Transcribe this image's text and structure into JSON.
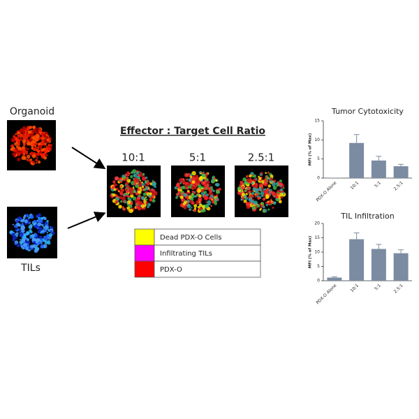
{
  "figure": {
    "organoid_label": "Organoid",
    "tils_label": "TILs",
    "ratio_title": "Effector : Target Cell Ratio",
    "ratios": [
      "10:1",
      "5:1",
      "2.5:1"
    ],
    "legend": [
      {
        "label": "Dead PDX-O Cells",
        "color": "#ffff00"
      },
      {
        "label": "Infiltrating TILs",
        "color": "#ff00ff"
      },
      {
        "label": "PDX-O",
        "color": "#ff0000"
      }
    ]
  },
  "chart_data": [
    {
      "type": "bar",
      "title": "Tumor Cytotoxicity",
      "y_label": "MFI (% of Max)",
      "color": "#7b8ba1",
      "categories": [
        "PDX-O Alone",
        "10:1",
        "5:1",
        "2.5:1"
      ],
      "values": [
        0.1,
        9.2,
        4.6,
        3.1
      ],
      "errors": [
        0,
        2.2,
        1.1,
        0.5
      ],
      "ylim": [
        0,
        15
      ],
      "yticks": [
        0,
        5,
        10,
        15
      ]
    },
    {
      "type": "bar",
      "title": "TIL Infiltration",
      "y_label": "MFI (% of Max)",
      "color": "#7b8ba1",
      "categories": [
        "PDX-O Alone",
        "10:1",
        "5:1",
        "2.5:1"
      ],
      "values": [
        1.1,
        14.5,
        11.1,
        9.6
      ],
      "errors": [
        0.3,
        2.2,
        1.6,
        1.2
      ],
      "ylim": [
        0,
        20
      ],
      "yticks": [
        0,
        5,
        10,
        15,
        20
      ]
    }
  ]
}
